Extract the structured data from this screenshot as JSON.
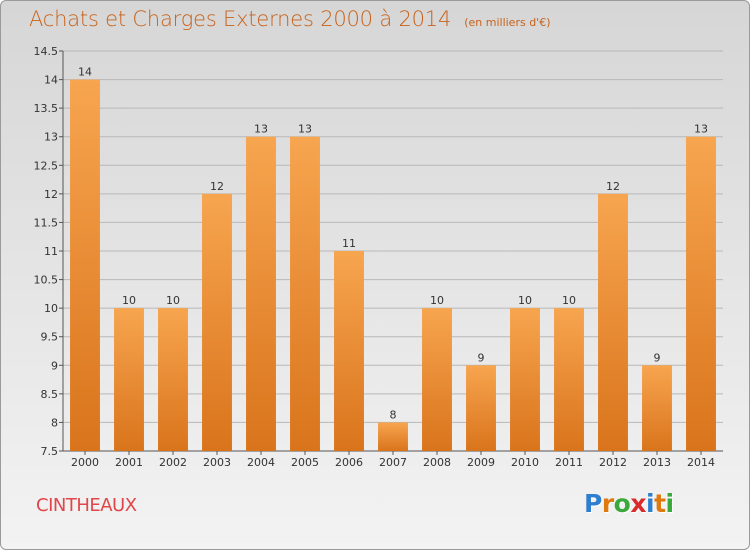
{
  "header": {
    "title": "Achats et Charges Externes 2000 à 2014",
    "subtitle": "(en milliers d'€)"
  },
  "commune": "CINTHEAUX",
  "logo": {
    "text": "Proxiti",
    "letters": [
      {
        "char": "P",
        "color": "#2f7fd0"
      },
      {
        "char": "r",
        "color": "#e07a10"
      },
      {
        "char": "o",
        "color": "#3aa83a"
      },
      {
        "char": "x",
        "color": "#d92b2b"
      },
      {
        "char": "i",
        "color": "#2f7fd0"
      },
      {
        "char": "t",
        "color": "#e07a10"
      },
      {
        "char": "i",
        "color": "#3aa83a"
      }
    ]
  },
  "colors": {
    "bar_light": "#f7a54f",
    "bar_dark": "#d9741c",
    "grid": "#b8b8b8",
    "title": "#c8621a",
    "commune": "#e0464a"
  },
  "chart_data": {
    "type": "bar",
    "title": "Achats et Charges Externes 2000 à 2014",
    "subtitle": "(en milliers d'€)",
    "xlabel": "",
    "ylabel": "",
    "categories": [
      "2000",
      "2001",
      "2002",
      "2003",
      "2004",
      "2005",
      "2006",
      "2007",
      "2008",
      "2009",
      "2010",
      "2011",
      "2012",
      "2013",
      "2014"
    ],
    "values": [
      14,
      10,
      10,
      12,
      13,
      13,
      11,
      8,
      10,
      9,
      10,
      10,
      12,
      9,
      13
    ],
    "data_labels": [
      "14",
      "10",
      "10",
      "12",
      "13",
      "13",
      "11",
      "8",
      "10",
      "9",
      "10",
      "10",
      "12",
      "9",
      "13"
    ],
    "ylim": [
      7.5,
      14.5
    ],
    "yticks": [
      7.5,
      8,
      8.5,
      9,
      9.5,
      10,
      10.5,
      11,
      11.5,
      12,
      12.5,
      13,
      13.5,
      14,
      14.5
    ],
    "ytick_labels": [
      "7.5",
      "8",
      "8.5",
      "9",
      "9.5",
      "10",
      "10.5",
      "11",
      "11.5",
      "12",
      "12.5",
      "13",
      "13.5",
      "14",
      "14.5"
    ],
    "grid": true,
    "legend": "none"
  }
}
